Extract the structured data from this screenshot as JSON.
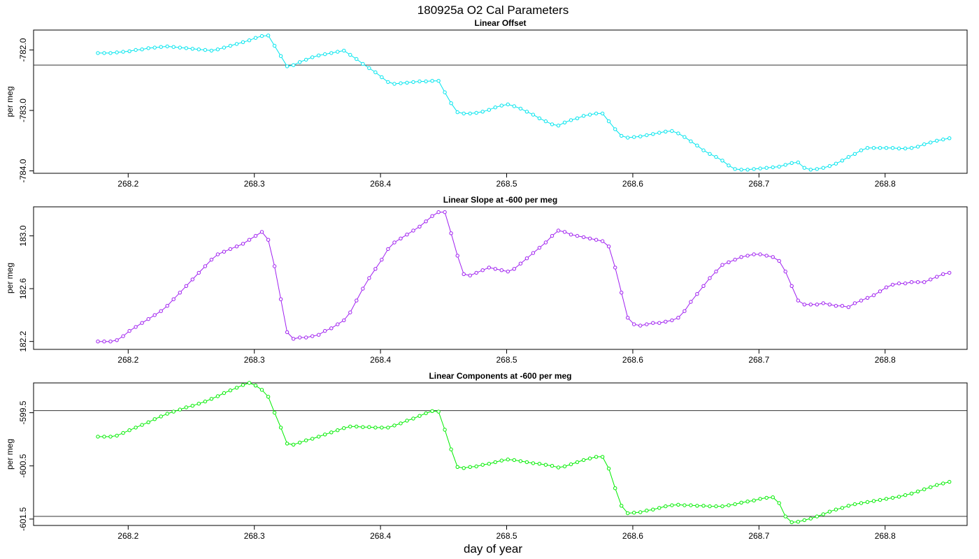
{
  "figure": {
    "title": "180925a   O2 Cal Parameters",
    "xlabel": "day of year"
  },
  "chart_data": [
    {
      "type": "line",
      "title": "Linear Offset",
      "ylabel": "per meg",
      "xlabel": "day of year",
      "color": "#00e5ee",
      "x_ticks": [
        268.2,
        268.3,
        268.4,
        268.5,
        268.6,
        268.7,
        268.8
      ],
      "x_tick_labels": [
        "268.2",
        "268.3",
        "268.4",
        "268.5",
        "268.6",
        "268.7",
        "268.8"
      ],
      "y_ticks": [
        -782.0,
        -783.0,
        -784.0
      ],
      "y_tick_labels": [
        "-782.0",
        "-783.0",
        "-784.0"
      ],
      "xlim": [
        268.125,
        268.865
      ],
      "ylim": [
        -784.04,
        -781.67
      ],
      "hline": -782.25,
      "x": [
        268.176,
        268.181,
        268.186,
        268.191,
        268.196,
        268.201,
        268.206,
        268.211,
        268.216,
        268.221,
        268.226,
        268.231,
        268.236,
        268.241,
        268.246,
        268.251,
        268.256,
        268.261,
        268.266,
        268.271,
        268.276,
        268.281,
        268.286,
        268.291,
        268.296,
        268.301,
        268.306,
        268.311,
        268.316,
        268.321,
        268.326,
        268.331,
        268.336,
        268.341,
        268.346,
        268.351,
        268.356,
        268.361,
        268.366,
        268.371,
        268.376,
        268.381,
        268.386,
        268.391,
        268.396,
        268.401,
        268.406,
        268.411,
        268.416,
        268.421,
        268.426,
        268.431,
        268.436,
        268.441,
        268.446,
        268.451,
        268.456,
        268.461,
        268.466,
        268.471,
        268.476,
        268.481,
        268.486,
        268.491,
        268.496,
        268.501,
        268.506,
        268.511,
        268.516,
        268.521,
        268.526,
        268.531,
        268.536,
        268.541,
        268.546,
        268.551,
        268.556,
        268.561,
        268.566,
        268.571,
        268.576,
        268.581,
        268.586,
        268.591,
        268.596,
        268.601,
        268.606,
        268.611,
        268.616,
        268.621,
        268.626,
        268.631,
        268.636,
        268.641,
        268.646,
        268.651,
        268.656,
        268.661,
        268.666,
        268.671,
        268.676,
        268.681,
        268.686,
        268.691,
        268.696,
        268.701,
        268.706,
        268.711,
        268.716,
        268.721,
        268.726,
        268.731,
        268.736,
        268.741,
        268.746,
        268.751,
        268.756,
        268.761,
        268.766,
        268.771,
        268.776,
        268.781,
        268.786,
        268.791,
        268.796,
        268.801,
        268.806,
        268.811,
        268.816,
        268.821,
        268.826,
        268.831,
        268.836,
        268.841,
        268.846,
        268.851
      ],
      "values": [
        -782.05,
        -782.05,
        -782.05,
        -782.04,
        -782.03,
        -782.02,
        -782.0,
        -781.99,
        -781.97,
        -781.96,
        -781.95,
        -781.94,
        -781.95,
        -781.96,
        -781.97,
        -781.98,
        -781.99,
        -782.0,
        -782.01,
        -781.99,
        -781.96,
        -781.93,
        -781.9,
        -781.87,
        -781.84,
        -781.8,
        -781.77,
        -781.76,
        -781.93,
        -782.1,
        -782.27,
        -782.25,
        -782.2,
        -782.16,
        -782.12,
        -782.09,
        -782.07,
        -782.05,
        -782.03,
        -782.01,
        -782.08,
        -782.15,
        -782.23,
        -782.3,
        -782.37,
        -782.45,
        -782.53,
        -782.56,
        -782.55,
        -782.54,
        -782.53,
        -782.52,
        -782.52,
        -782.51,
        -782.51,
        -782.7,
        -782.88,
        -783.03,
        -783.05,
        -783.05,
        -783.04,
        -783.02,
        -782.99,
        -782.95,
        -782.92,
        -782.9,
        -782.93,
        -782.97,
        -783.02,
        -783.07,
        -783.13,
        -783.18,
        -783.23,
        -783.25,
        -783.2,
        -783.16,
        -783.13,
        -783.09,
        -783.07,
        -783.05,
        -783.05,
        -783.18,
        -783.31,
        -783.42,
        -783.45,
        -783.44,
        -783.43,
        -783.41,
        -783.39,
        -783.37,
        -783.35,
        -783.34,
        -783.38,
        -783.44,
        -783.51,
        -783.58,
        -783.66,
        -783.72,
        -783.77,
        -783.83,
        -783.91,
        -783.97,
        -783.98,
        -783.98,
        -783.97,
        -783.96,
        -783.95,
        -783.94,
        -783.93,
        -783.9,
        -783.87,
        -783.86,
        -783.95,
        -783.98,
        -783.97,
        -783.95,
        -783.92,
        -783.88,
        -783.83,
        -783.77,
        -783.72,
        -783.66,
        -783.62,
        -783.62,
        -783.62,
        -783.62,
        -783.62,
        -783.63,
        -783.63,
        -783.62,
        -783.6,
        -783.56,
        -783.53,
        -783.5,
        -783.48,
        -783.46
      ]
    },
    {
      "type": "line",
      "title": "Linear Slope at -600 per meg",
      "ylabel": "per meg",
      "xlabel": "day of year",
      "color": "#a020f0",
      "x_ticks": [
        268.2,
        268.3,
        268.4,
        268.5,
        268.6,
        268.7,
        268.8
      ],
      "x_tick_labels": [
        "268.2",
        "268.3",
        "268.4",
        "268.5",
        "268.6",
        "268.7",
        "268.8"
      ],
      "y_ticks": [
        182.2,
        182.6,
        183.0
      ],
      "y_tick_labels": [
        "182.2",
        "182.6",
        "183.0"
      ],
      "xlim": [
        268.125,
        268.865
      ],
      "ylim": [
        182.14,
        183.22
      ],
      "hline": null,
      "x": [
        268.176,
        268.181,
        268.186,
        268.191,
        268.196,
        268.201,
        268.206,
        268.211,
        268.216,
        268.221,
        268.226,
        268.231,
        268.236,
        268.241,
        268.246,
        268.251,
        268.256,
        268.261,
        268.266,
        268.271,
        268.276,
        268.281,
        268.286,
        268.291,
        268.296,
        268.301,
        268.306,
        268.311,
        268.316,
        268.321,
        268.326,
        268.331,
        268.336,
        268.341,
        268.346,
        268.351,
        268.356,
        268.361,
        268.366,
        268.371,
        268.376,
        268.381,
        268.386,
        268.391,
        268.396,
        268.401,
        268.406,
        268.411,
        268.416,
        268.421,
        268.426,
        268.431,
        268.436,
        268.441,
        268.446,
        268.451,
        268.456,
        268.461,
        268.466,
        268.471,
        268.476,
        268.481,
        268.486,
        268.491,
        268.496,
        268.501,
        268.506,
        268.511,
        268.516,
        268.521,
        268.526,
        268.531,
        268.536,
        268.541,
        268.546,
        268.551,
        268.556,
        268.561,
        268.566,
        268.571,
        268.576,
        268.581,
        268.586,
        268.591,
        268.596,
        268.601,
        268.606,
        268.611,
        268.616,
        268.621,
        268.626,
        268.631,
        268.636,
        268.641,
        268.646,
        268.651,
        268.656,
        268.661,
        268.666,
        268.671,
        268.676,
        268.681,
        268.686,
        268.691,
        268.696,
        268.701,
        268.706,
        268.711,
        268.716,
        268.721,
        268.726,
        268.731,
        268.736,
        268.741,
        268.746,
        268.751,
        268.756,
        268.761,
        268.766,
        268.771,
        268.776,
        268.781,
        268.786,
        268.791,
        268.796,
        268.801,
        268.806,
        268.811,
        268.816,
        268.821,
        268.826,
        268.831,
        268.836,
        268.841,
        268.846,
        268.851
      ],
      "values": [
        182.2,
        182.2,
        182.2,
        182.21,
        182.24,
        182.28,
        182.31,
        182.34,
        182.37,
        182.4,
        182.43,
        182.47,
        182.52,
        182.57,
        182.62,
        182.67,
        182.72,
        182.77,
        182.82,
        182.86,
        182.88,
        182.9,
        182.92,
        182.94,
        182.97,
        183.0,
        183.03,
        182.97,
        182.77,
        182.52,
        182.27,
        182.22,
        182.23,
        182.23,
        182.24,
        182.25,
        182.28,
        182.3,
        182.33,
        182.36,
        182.42,
        182.51,
        182.6,
        182.68,
        182.75,
        182.82,
        182.9,
        182.95,
        182.98,
        183.01,
        183.04,
        183.07,
        183.11,
        183.15,
        183.18,
        183.18,
        183.02,
        182.85,
        182.71,
        182.7,
        182.72,
        182.74,
        182.76,
        182.75,
        182.74,
        182.73,
        182.75,
        182.79,
        182.83,
        182.87,
        182.91,
        182.95,
        183.0,
        183.04,
        183.03,
        183.01,
        183.0,
        182.99,
        182.98,
        182.97,
        182.96,
        182.92,
        182.76,
        182.57,
        182.38,
        182.33,
        182.32,
        182.33,
        182.34,
        182.34,
        182.35,
        182.36,
        182.38,
        182.43,
        182.5,
        182.56,
        182.62,
        182.68,
        182.73,
        182.78,
        182.8,
        182.82,
        182.84,
        182.85,
        182.86,
        182.86,
        182.85,
        182.84,
        182.81,
        182.73,
        182.62,
        182.51,
        182.48,
        182.48,
        182.48,
        182.49,
        182.48,
        182.47,
        182.47,
        182.46,
        182.49,
        182.51,
        182.53,
        182.55,
        182.58,
        182.61,
        182.63,
        182.64,
        182.64,
        182.65,
        182.65,
        182.65,
        182.67,
        182.69,
        182.71,
        182.72
      ]
    },
    {
      "type": "line",
      "title": "Linear Components at -600 per meg",
      "ylabel": "per meg",
      "xlabel": "day of year",
      "color": "#00ee00",
      "x_ticks": [
        268.2,
        268.3,
        268.4,
        268.5,
        268.6,
        268.7,
        268.8
      ],
      "x_tick_labels": [
        "268.2",
        "268.3",
        "268.4",
        "268.5",
        "268.6",
        "268.7",
        "268.8"
      ],
      "y_ticks": [
        -599.5,
        -600.5,
        -601.5
      ],
      "y_tick_labels": [
        "-599.5",
        "-600.5",
        "-601.5"
      ],
      "xlim": [
        268.125,
        268.865
      ],
      "ylim": [
        -601.62,
        -598.94
      ],
      "hline": [
        -599.46,
        -601.45
      ],
      "x": [
        268.176,
        268.181,
        268.186,
        268.191,
        268.196,
        268.201,
        268.206,
        268.211,
        268.216,
        268.221,
        268.226,
        268.231,
        268.236,
        268.241,
        268.246,
        268.251,
        268.256,
        268.261,
        268.266,
        268.271,
        268.276,
        268.281,
        268.286,
        268.291,
        268.296,
        268.301,
        268.306,
        268.311,
        268.316,
        268.321,
        268.326,
        268.331,
        268.336,
        268.341,
        268.346,
        268.351,
        268.356,
        268.361,
        268.366,
        268.371,
        268.376,
        268.381,
        268.386,
        268.391,
        268.396,
        268.401,
        268.406,
        268.411,
        268.416,
        268.421,
        268.426,
        268.431,
        268.436,
        268.441,
        268.446,
        268.451,
        268.456,
        268.461,
        268.466,
        268.471,
        268.476,
        268.481,
        268.486,
        268.491,
        268.496,
        268.501,
        268.506,
        268.511,
        268.516,
        268.521,
        268.526,
        268.531,
        268.536,
        268.541,
        268.546,
        268.551,
        268.556,
        268.561,
        268.566,
        268.571,
        268.576,
        268.581,
        268.586,
        268.591,
        268.596,
        268.601,
        268.606,
        268.611,
        268.616,
        268.621,
        268.626,
        268.631,
        268.636,
        268.641,
        268.646,
        268.651,
        268.656,
        268.661,
        268.666,
        268.671,
        268.676,
        268.681,
        268.686,
        268.691,
        268.696,
        268.701,
        268.706,
        268.711,
        268.716,
        268.721,
        268.726,
        268.731,
        268.736,
        268.741,
        268.746,
        268.751,
        268.756,
        268.761,
        268.766,
        268.771,
        268.776,
        268.781,
        268.786,
        268.791,
        268.796,
        268.801,
        268.806,
        268.811,
        268.816,
        268.821,
        268.826,
        268.831,
        268.836,
        268.841,
        268.846,
        268.851
      ],
      "values": [
        -599.95,
        -599.95,
        -599.95,
        -599.93,
        -599.88,
        -599.83,
        -599.78,
        -599.73,
        -599.68,
        -599.62,
        -599.57,
        -599.52,
        -599.48,
        -599.44,
        -599.4,
        -599.37,
        -599.33,
        -599.29,
        -599.24,
        -599.19,
        -599.13,
        -599.08,
        -599.03,
        -598.98,
        -598.94,
        -598.99,
        -599.07,
        -599.2,
        -599.5,
        -599.78,
        -600.08,
        -600.1,
        -600.06,
        -600.02,
        -599.99,
        -599.95,
        -599.91,
        -599.87,
        -599.83,
        -599.79,
        -599.76,
        -599.76,
        -599.77,
        -599.77,
        -599.78,
        -599.78,
        -599.78,
        -599.74,
        -599.7,
        -599.65,
        -599.61,
        -599.56,
        -599.51,
        -599.47,
        -599.48,
        -599.82,
        -600.19,
        -600.52,
        -600.54,
        -600.52,
        -600.51,
        -600.48,
        -600.46,
        -600.43,
        -600.4,
        -600.38,
        -600.39,
        -600.41,
        -600.43,
        -600.45,
        -600.46,
        -600.48,
        -600.5,
        -600.53,
        -600.51,
        -600.47,
        -600.43,
        -600.39,
        -600.36,
        -600.33,
        -600.33,
        -600.55,
        -600.92,
        -601.25,
        -601.39,
        -601.38,
        -601.37,
        -601.34,
        -601.32,
        -601.29,
        -601.26,
        -601.24,
        -601.23,
        -601.24,
        -601.24,
        -601.25,
        -601.25,
        -601.26,
        -601.26,
        -601.26,
        -601.24,
        -601.22,
        -601.19,
        -601.17,
        -601.15,
        -601.12,
        -601.1,
        -601.09,
        -601.2,
        -601.45,
        -601.56,
        -601.55,
        -601.52,
        -601.49,
        -601.45,
        -601.41,
        -601.36,
        -601.32,
        -601.29,
        -601.25,
        -601.22,
        -601.2,
        -601.18,
        -601.16,
        -601.14,
        -601.12,
        -601.1,
        -601.08,
        -601.05,
        -601.02,
        -600.98,
        -600.94,
        -600.9,
        -600.86,
        -600.83,
        -600.8
      ]
    }
  ]
}
